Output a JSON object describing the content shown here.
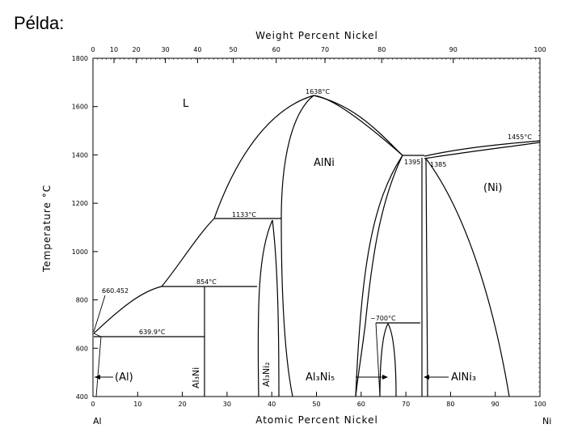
{
  "slide": {
    "title": "Példa:"
  },
  "diagram": {
    "top_axis_title": "Weight Percent Nickel",
    "bottom_axis_title": "Atomic Percent Nickel",
    "left_axis_title": "Temperature °C",
    "left_element": "Al",
    "right_element": "Ni",
    "y_ticks": [
      "1800",
      "1600",
      "1400",
      "1200",
      "1000",
      "800",
      "600",
      "400"
    ],
    "x_ticks_atomic": [
      "0",
      "10",
      "20",
      "30",
      "40",
      "50",
      "60",
      "70",
      "80",
      "90",
      "100"
    ],
    "x_ticks_weight": [
      "0",
      "10",
      "20",
      "30",
      "40",
      "50",
      "60",
      "70",
      "80",
      "90",
      "100"
    ],
    "temperatures": {
      "alni_max": "1638°C",
      "ni_melt": "1455°C",
      "peritectic_1395": "1395",
      "peritectic_1385": "1385",
      "peritectic_1133": "1133°C",
      "peritectic_854": "854°C",
      "al_melt": "660.452",
      "eutectic": "639.9°C",
      "al3ni5": "~700°C"
    },
    "phases": {
      "liquid": "L",
      "alni": "AlNi",
      "ni": "(Ni)",
      "al": "(Al)",
      "al3ni": "Al₃Ni",
      "al3ni2": "Al₃Ni₂",
      "al3ni5": "Al₃Ni₅",
      "alni3": "AlNi₃"
    }
  }
}
